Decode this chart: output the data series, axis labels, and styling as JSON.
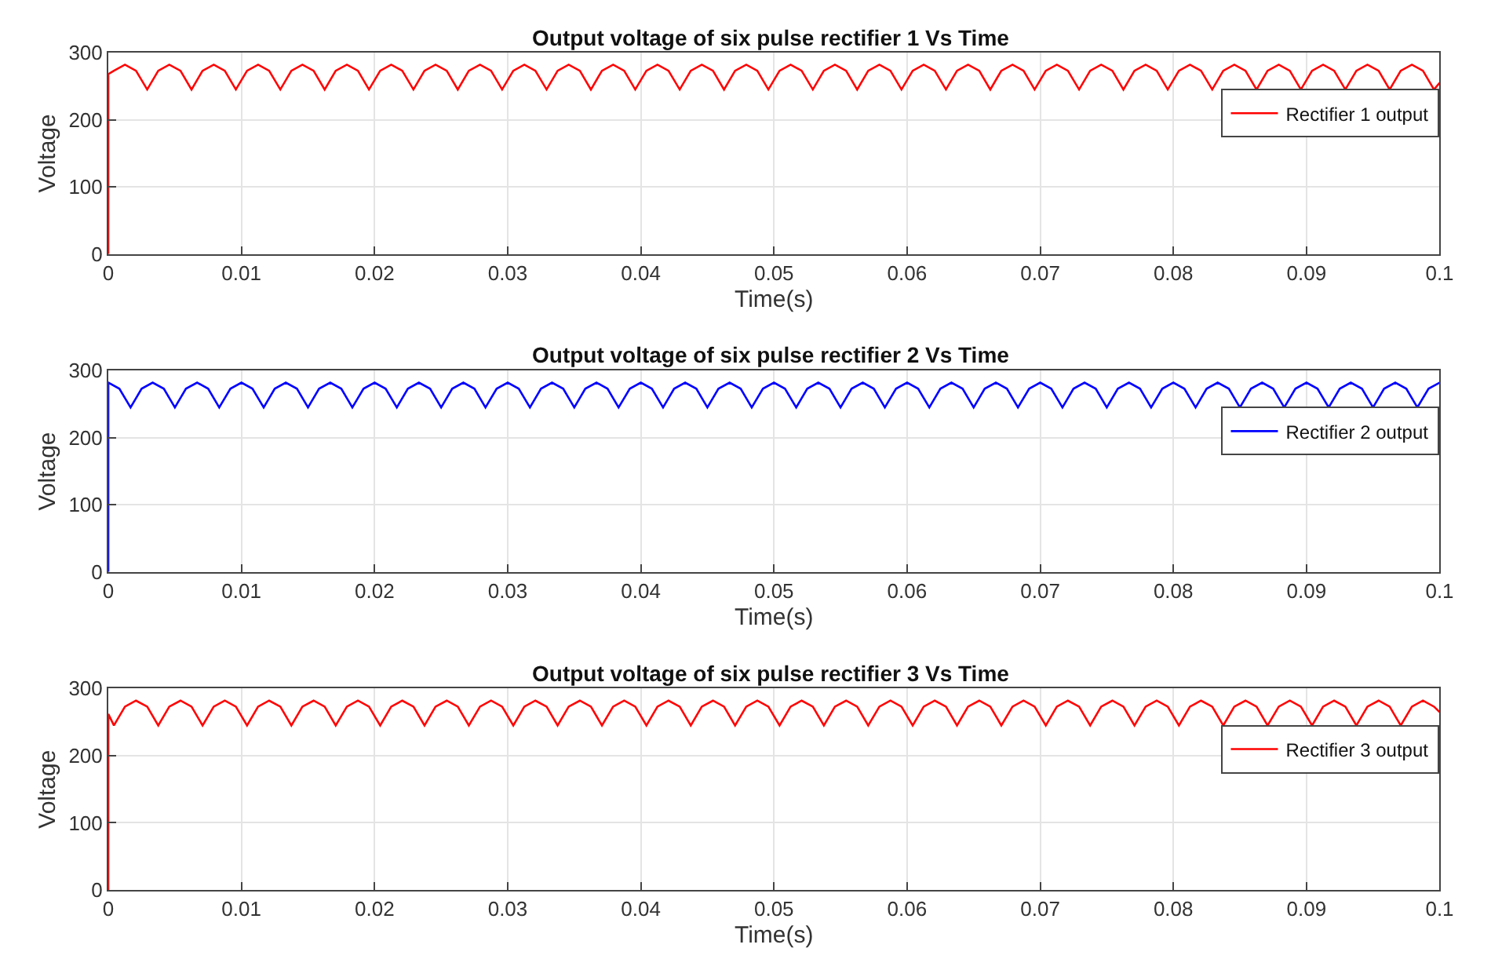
{
  "chart_data": [
    {
      "type": "line",
      "title": "Output voltage of six pulse rectifier 1 Vs Time",
      "xlabel": "Time(s)",
      "ylabel": "Voltage",
      "xlim": [
        0,
        0.1
      ],
      "ylim": [
        0,
        300
      ],
      "xticks": [
        0,
        0.01,
        0.02,
        0.03,
        0.04,
        0.05,
        0.06,
        0.07,
        0.08,
        0.09,
        0.1
      ],
      "yticks": [
        0,
        100,
        200,
        300
      ],
      "grid": true,
      "legend": "top right",
      "line_style": "solid",
      "x": [
        0,
        0,
        0.00042,
        0.00125,
        0.00208,
        0.00292,
        0.00375,
        0.00458,
        0.00542,
        0.00625,
        0.00708,
        0.00792,
        0.00875,
        0.00958,
        0.01042,
        0.01125,
        0.01208,
        0.01292,
        0.01375,
        0.01458,
        0.01542,
        0.01625,
        0.01708,
        0.01792,
        0.01875,
        0.01958,
        0.02042,
        0.02125,
        0.02208,
        0.02292,
        0.02375,
        0.02458,
        0.02542,
        0.02625,
        0.02708,
        0.02792,
        0.02875,
        0.02958,
        0.03042,
        0.03125,
        0.03208,
        0.03292,
        0.03375,
        0.03458,
        0.03542,
        0.03625,
        0.03708,
        0.03792,
        0.03875,
        0.03958,
        0.04042,
        0.04125,
        0.04208,
        0.04292,
        0.04375,
        0.04458,
        0.04542,
        0.04625,
        0.04708,
        0.04792,
        0.04875,
        0.04958,
        0.05042,
        0.05125,
        0.05208,
        0.05292,
        0.05375,
        0.05458,
        0.05542,
        0.05625,
        0.05708,
        0.05792,
        0.05875,
        0.05958,
        0.06042,
        0.06125,
        0.06208,
        0.06292,
        0.06375,
        0.06458,
        0.06542,
        0.06625,
        0.06708,
        0.06792,
        0.06875,
        0.06958,
        0.07042,
        0.07125,
        0.07208,
        0.07292,
        0.07375,
        0.07458,
        0.07542,
        0.07625,
        0.07708,
        0.07792,
        0.07875,
        0.07958,
        0.08042,
        0.08125,
        0.08208,
        0.08292,
        0.08375,
        0.08458,
        0.08542,
        0.08625,
        0.08708,
        0.08792,
        0.08875,
        0.08958,
        0.09042,
        0.09125,
        0.09208,
        0.09292,
        0.09375,
        0.09458,
        0.09542,
        0.09625,
        0.09708,
        0.09792,
        0.09875,
        0.09958,
        0.1
      ],
      "series": [
        {
          "name": "Rectifier 1 output",
          "color": "#ff0000",
          "values": [
            0,
            268,
            273,
            282,
            273,
            245,
            273,
            282,
            273,
            245,
            273,
            282,
            273,
            245,
            273,
            282,
            273,
            245,
            273,
            282,
            273,
            245,
            273,
            282,
            273,
            245,
            273,
            282,
            273,
            245,
            273,
            282,
            273,
            245,
            273,
            282,
            273,
            245,
            273,
            282,
            273,
            245,
            273,
            282,
            273,
            245,
            273,
            282,
            273,
            245,
            273,
            282,
            273,
            245,
            273,
            282,
            273,
            245,
            273,
            282,
            273,
            245,
            273,
            282,
            273,
            245,
            273,
            282,
            273,
            245,
            273,
            282,
            273,
            245,
            273,
            282,
            273,
            245,
            273,
            282,
            273,
            245,
            273,
            282,
            273,
            245,
            273,
            282,
            273,
            245,
            273,
            282,
            273,
            245,
            273,
            282,
            273,
            245,
            273,
            282,
            273,
            245,
            273,
            282,
            273,
            245,
            273,
            282,
            273,
            245,
            273,
            282,
            273,
            245,
            273,
            282,
            273,
            245,
            273,
            282,
            273,
            245,
            255
          ]
        }
      ]
    },
    {
      "type": "line",
      "title": "Output voltage of six pulse rectifier 2 Vs Time",
      "xlabel": "Time(s)",
      "ylabel": "Voltage",
      "xlim": [
        0,
        0.1
      ],
      "ylim": [
        0,
        300
      ],
      "xticks": [
        0,
        0.01,
        0.02,
        0.03,
        0.04,
        0.05,
        0.06,
        0.07,
        0.08,
        0.09,
        0.1
      ],
      "yticks": [
        0,
        100,
        200,
        300
      ],
      "grid": true,
      "legend": "top right",
      "line_style": "solid",
      "x": [
        0,
        0,
        0.00083,
        0.00167,
        0.0025,
        0.00333,
        0.00417,
        0.005,
        0.00583,
        0.00667,
        0.0075,
        0.00833,
        0.00917,
        0.01,
        0.01083,
        0.01167,
        0.0125,
        0.01333,
        0.01417,
        0.015,
        0.01583,
        0.01667,
        0.0175,
        0.01833,
        0.01917,
        0.02,
        0.02083,
        0.02167,
        0.0225,
        0.02333,
        0.02417,
        0.025,
        0.02583,
        0.02667,
        0.0275,
        0.02833,
        0.02917,
        0.03,
        0.03083,
        0.03167,
        0.0325,
        0.03333,
        0.03417,
        0.035,
        0.03583,
        0.03667,
        0.0375,
        0.03833,
        0.03917,
        0.04,
        0.04083,
        0.04167,
        0.0425,
        0.04333,
        0.04417,
        0.045,
        0.04583,
        0.04667,
        0.0475,
        0.04833,
        0.04917,
        0.05,
        0.05083,
        0.05167,
        0.0525,
        0.05333,
        0.05417,
        0.055,
        0.05583,
        0.05667,
        0.0575,
        0.05833,
        0.05917,
        0.06,
        0.06083,
        0.06167,
        0.0625,
        0.06333,
        0.06417,
        0.065,
        0.06583,
        0.06667,
        0.0675,
        0.06833,
        0.06917,
        0.07,
        0.07083,
        0.07167,
        0.0725,
        0.07333,
        0.07417,
        0.075,
        0.07583,
        0.07667,
        0.0775,
        0.07833,
        0.07917,
        0.08,
        0.08083,
        0.08167,
        0.0825,
        0.08333,
        0.08417,
        0.085,
        0.08583,
        0.08667,
        0.0875,
        0.08833,
        0.08917,
        0.09,
        0.09083,
        0.09167,
        0.0925,
        0.09333,
        0.09417,
        0.095,
        0.09583,
        0.09667,
        0.0975,
        0.09833,
        0.09917,
        0.1
      ],
      "series": [
        {
          "name": "Rectifier 2 output",
          "color": "#0000ff",
          "values": [
            0,
            282,
            273,
            245,
            273,
            282,
            273,
            245,
            273,
            282,
            273,
            245,
            273,
            282,
            273,
            245,
            273,
            282,
            273,
            245,
            273,
            282,
            273,
            245,
            273,
            282,
            273,
            245,
            273,
            282,
            273,
            245,
            273,
            282,
            273,
            245,
            273,
            282,
            273,
            245,
            273,
            282,
            273,
            245,
            273,
            282,
            273,
            245,
            273,
            282,
            273,
            245,
            273,
            282,
            273,
            245,
            273,
            282,
            273,
            245,
            273,
            282,
            273,
            245,
            273,
            282,
            273,
            245,
            273,
            282,
            273,
            245,
            273,
            282,
            273,
            245,
            273,
            282,
            273,
            245,
            273,
            282,
            273,
            245,
            273,
            282,
            273,
            245,
            273,
            282,
            273,
            245,
            273,
            282,
            273,
            245,
            273,
            282,
            273,
            245,
            273,
            282,
            273,
            245,
            273,
            282,
            273,
            245,
            273,
            282,
            273,
            245,
            273,
            282,
            273,
            245,
            273,
            282,
            273,
            245,
            273,
            282
          ]
        }
      ]
    },
    {
      "type": "line",
      "title": "Output voltage of six pulse rectifier 3 Vs Time",
      "xlabel": "Time(s)",
      "ylabel": "Voltage",
      "xlim": [
        0,
        0.1
      ],
      "ylim": [
        0,
        300
      ],
      "xticks": [
        0,
        0.01,
        0.02,
        0.03,
        0.04,
        0.05,
        0.06,
        0.07,
        0.08,
        0.09,
        0.1
      ],
      "yticks": [
        0,
        100,
        200,
        300
      ],
      "grid": true,
      "legend": "top right",
      "line_style": "solid",
      "x": [
        0,
        0,
        0.00042,
        0.00125,
        0.00208,
        0.00292,
        0.00375,
        0.00458,
        0.00542,
        0.00625,
        0.00708,
        0.00792,
        0.00875,
        0.00958,
        0.01042,
        0.01125,
        0.01208,
        0.01292,
        0.01375,
        0.01458,
        0.01542,
        0.01625,
        0.01708,
        0.01792,
        0.01875,
        0.01958,
        0.02042,
        0.02125,
        0.02208,
        0.02292,
        0.02375,
        0.02458,
        0.02542,
        0.02625,
        0.02708,
        0.02792,
        0.02875,
        0.02958,
        0.03042,
        0.03125,
        0.03208,
        0.03292,
        0.03375,
        0.03458,
        0.03542,
        0.03625,
        0.03708,
        0.03792,
        0.03875,
        0.03958,
        0.04042,
        0.04125,
        0.04208,
        0.04292,
        0.04375,
        0.04458,
        0.04542,
        0.04625,
        0.04708,
        0.04792,
        0.04875,
        0.04958,
        0.05042,
        0.05125,
        0.05208,
        0.05292,
        0.05375,
        0.05458,
        0.05542,
        0.05625,
        0.05708,
        0.05792,
        0.05875,
        0.05958,
        0.06042,
        0.06125,
        0.06208,
        0.06292,
        0.06375,
        0.06458,
        0.06542,
        0.06625,
        0.06708,
        0.06792,
        0.06875,
        0.06958,
        0.07042,
        0.07125,
        0.07208,
        0.07292,
        0.07375,
        0.07458,
        0.07542,
        0.07625,
        0.07708,
        0.07792,
        0.07875,
        0.07958,
        0.08042,
        0.08125,
        0.08208,
        0.08292,
        0.08375,
        0.08458,
        0.08542,
        0.08625,
        0.08708,
        0.08792,
        0.08875,
        0.08958,
        0.09042,
        0.09125,
        0.09208,
        0.09292,
        0.09375,
        0.09458,
        0.09542,
        0.09625,
        0.09708,
        0.09792,
        0.09875,
        0.09958,
        0.1
      ],
      "series": [
        {
          "name": "Rectifier 3 output",
          "color": "#ff0000",
          "values": [
            0,
            262,
            245,
            273,
            282,
            273,
            245,
            273,
            282,
            273,
            245,
            273,
            282,
            273,
            245,
            273,
            282,
            273,
            245,
            273,
            282,
            273,
            245,
            273,
            282,
            273,
            245,
            273,
            282,
            273,
            245,
            273,
            282,
            273,
            245,
            273,
            282,
            273,
            245,
            273,
            282,
            273,
            245,
            273,
            282,
            273,
            245,
            273,
            282,
            273,
            245,
            273,
            282,
            273,
            245,
            273,
            282,
            273,
            245,
            273,
            282,
            273,
            245,
            273,
            282,
            273,
            245,
            273,
            282,
            273,
            245,
            273,
            282,
            273,
            245,
            273,
            282,
            273,
            245,
            273,
            282,
            273,
            245,
            273,
            282,
            273,
            245,
            273,
            282,
            273,
            245,
            273,
            282,
            273,
            245,
            273,
            282,
            273,
            245,
            273,
            282,
            273,
            245,
            273,
            282,
            273,
            245,
            273,
            282,
            273,
            245,
            273,
            282,
            273,
            245,
            273,
            282,
            273,
            245,
            273,
            282,
            273,
            265
          ]
        }
      ]
    }
  ]
}
